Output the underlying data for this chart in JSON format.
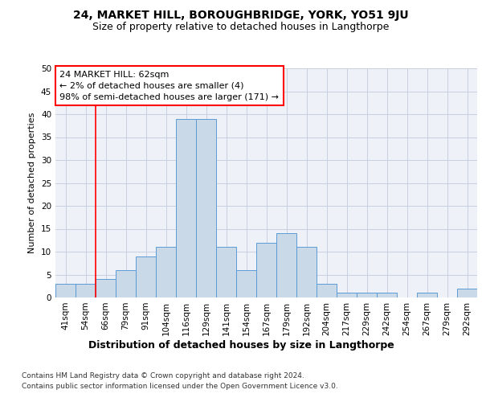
{
  "title": "24, MARKET HILL, BOROUGHBRIDGE, YORK, YO51 9JU",
  "subtitle": "Size of property relative to detached houses in Langthorpe",
  "xlabel": "Distribution of detached houses by size in Langthorpe",
  "ylabel": "Number of detached properties",
  "bar_color": "#c9d9e8",
  "bar_edge_color": "#5b9bd5",
  "categories": [
    "41sqm",
    "54sqm",
    "66sqm",
    "79sqm",
    "91sqm",
    "104sqm",
    "116sqm",
    "129sqm",
    "141sqm",
    "154sqm",
    "167sqm",
    "179sqm",
    "192sqm",
    "204sqm",
    "217sqm",
    "229sqm",
    "242sqm",
    "254sqm",
    "267sqm",
    "279sqm",
    "292sqm"
  ],
  "values": [
    3,
    3,
    4,
    6,
    9,
    11,
    39,
    39,
    11,
    6,
    12,
    14,
    11,
    3,
    1,
    1,
    1,
    0,
    1,
    0,
    2
  ],
  "ylim": [
    0,
    50
  ],
  "yticks": [
    0,
    5,
    10,
    15,
    20,
    25,
    30,
    35,
    40,
    45,
    50
  ],
  "red_line_x": 1.5,
  "annotation_line1": "24 MARKET HILL: 62sqm",
  "annotation_line2": "← 2% of detached houses are smaller (4)",
  "annotation_line3": "98% of semi-detached houses are larger (171) →",
  "footer1": "Contains HM Land Registry data © Crown copyright and database right 2024.",
  "footer2": "Contains public sector information licensed under the Open Government Licence v3.0.",
  "background_color": "#eef2f8",
  "grid_color": "#c8d0e0",
  "title_fontsize": 10,
  "subtitle_fontsize": 9,
  "ylabel_fontsize": 8,
  "xlabel_fontsize": 9,
  "tick_fontsize": 7.5,
  "annotation_fontsize": 8,
  "footer_fontsize": 6.5
}
